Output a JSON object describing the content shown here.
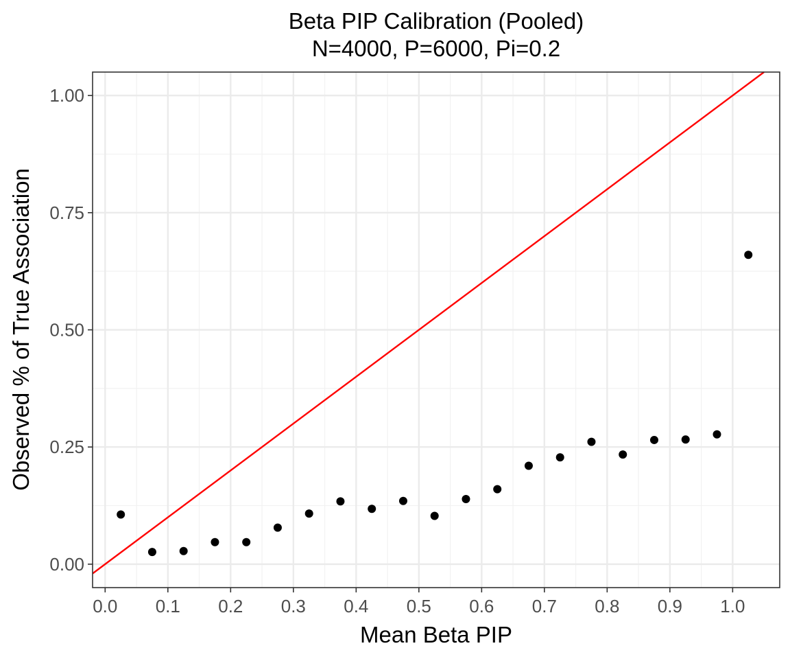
{
  "chart_data": {
    "type": "scatter",
    "title": "Beta PIP Calibration (Pooled)",
    "subtitle": "N=4000, P=6000, Pi=0.2",
    "xlabel": "Mean Beta PIP",
    "ylabel": "Observed % of True Association",
    "xlim": [
      -0.02,
      1.075
    ],
    "ylim": [
      -0.05,
      1.05
    ],
    "x_ticks": [
      0.0,
      0.1,
      0.2,
      0.3,
      0.4,
      0.5,
      0.6,
      0.7,
      0.8,
      0.9,
      1.0
    ],
    "x_tick_labels": [
      "0.0",
      "0.1",
      "0.2",
      "0.3",
      "0.4",
      "0.5",
      "0.6",
      "0.7",
      "0.8",
      "0.9",
      "1.0"
    ],
    "y_ticks": [
      0.0,
      0.25,
      0.5,
      0.75,
      1.0
    ],
    "y_tick_labels": [
      "0.00",
      "0.25",
      "0.50",
      "0.75",
      "1.00"
    ],
    "grid": true,
    "points": {
      "x": [
        0.025,
        0.075,
        0.125,
        0.175,
        0.225,
        0.275,
        0.325,
        0.375,
        0.425,
        0.475,
        0.525,
        0.575,
        0.625,
        0.675,
        0.725,
        0.775,
        0.825,
        0.875,
        0.925,
        0.975,
        1.025
      ],
      "y": [
        0.106,
        0.026,
        0.028,
        0.047,
        0.047,
        0.078,
        0.108,
        0.134,
        0.118,
        0.135,
        0.103,
        0.139,
        0.16,
        0.21,
        0.228,
        0.261,
        0.234,
        0.265,
        0.266,
        0.277,
        0.66
      ],
      "color": "#000000"
    },
    "reference_line": {
      "intercept": 0,
      "slope": 1,
      "color": "#ff0000"
    }
  }
}
